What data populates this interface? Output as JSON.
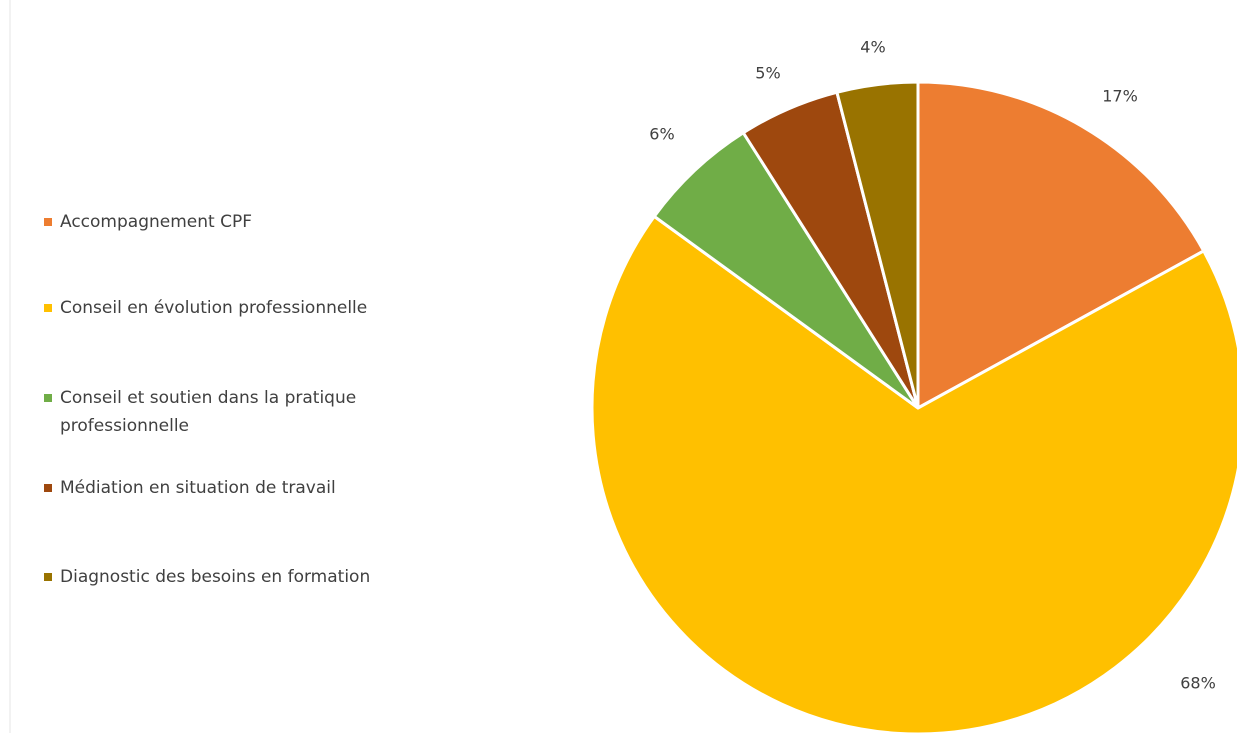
{
  "chart_data": {
    "type": "pie",
    "categories": [
      "Accompagnement CPF",
      "Conseil en évolution professionnelle",
      "Conseil et soutien dans la pratique professionnelle",
      "Médiation en situation de travail",
      "Diagnostic des besoins en formation"
    ],
    "values": [
      17,
      68,
      6,
      5,
      4
    ],
    "value_labels": [
      "17%",
      "68%",
      "6%",
      "5%",
      "4%"
    ],
    "colors": [
      "#ED7D31",
      "#FFC000",
      "#70AD47",
      "#9E480E",
      "#997300"
    ],
    "legend": "left"
  }
}
